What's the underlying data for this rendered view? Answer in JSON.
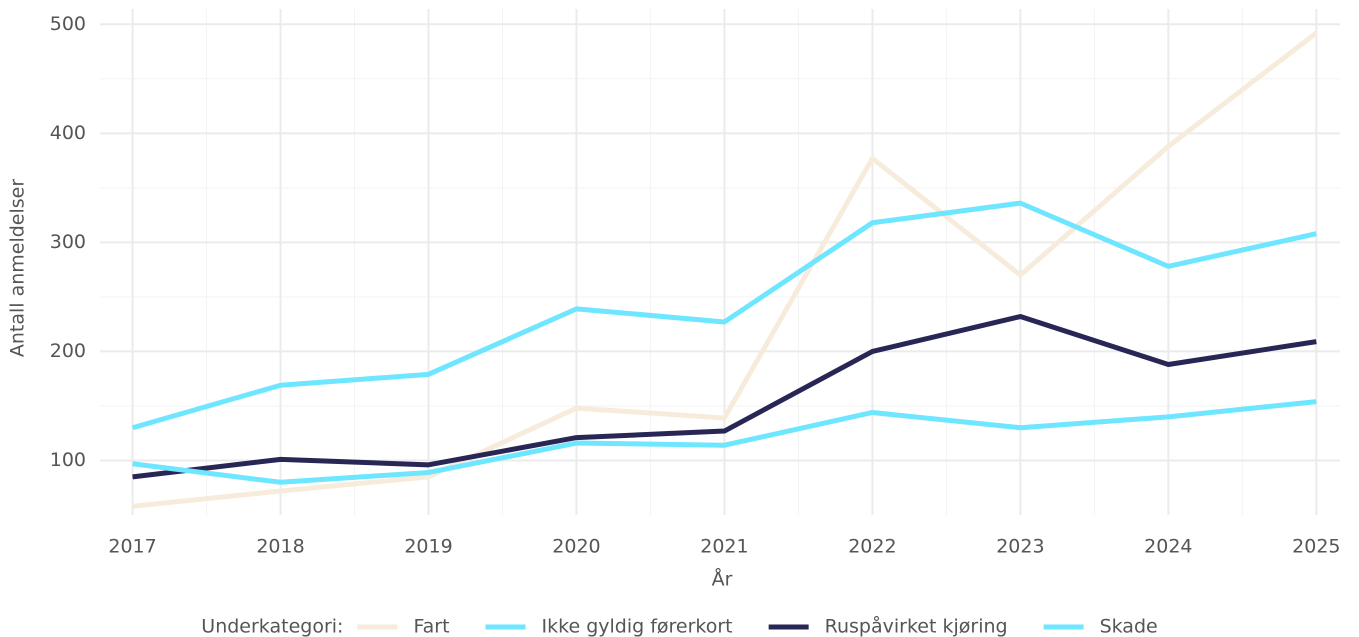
{
  "chart_data": {
    "type": "line",
    "x_label": "År",
    "y_label": "Antall anmeldelser",
    "legend_title": "Underkategori:",
    "legend": "bottom",
    "x": [
      2017,
      2018,
      2019,
      2020,
      2021,
      2022,
      2023,
      2024,
      2025
    ],
    "xlim": [
      2016.78,
      2025.16
    ],
    "xticks": [
      2017,
      2018,
      2019,
      2020,
      2021,
      2022,
      2023,
      2024,
      2025
    ],
    "minor_xticks": [
      2017.5,
      2018.5,
      2019.5,
      2020.5,
      2021.5,
      2022.5,
      2023.5,
      2024.5
    ],
    "ylim": [
      50,
      514
    ],
    "yticks": [
      100,
      200,
      300,
      400,
      500
    ],
    "minor_yticks": [
      150,
      250,
      350,
      450
    ],
    "grid": true,
    "series": [
      {
        "name": "Fart",
        "color": "#f7ecdb",
        "values": [
          58,
          72,
          85,
          148,
          139,
          377,
          270,
          388,
          492
        ]
      },
      {
        "name": "Ikke gyldig førerkort",
        "color": "#6ee6ff",
        "values": [
          130,
          169,
          179,
          239,
          227,
          318,
          336,
          278,
          308
        ]
      },
      {
        "name": "Ruspåvirket kjøring",
        "color": "#272655",
        "values": [
          85,
          101,
          96,
          121,
          127,
          200,
          232,
          188,
          209
        ]
      },
      {
        "name": "Skade",
        "color": "#6ee6ff",
        "values": [
          97,
          80,
          89,
          116,
          114,
          144,
          130,
          140,
          154
        ]
      }
    ]
  }
}
